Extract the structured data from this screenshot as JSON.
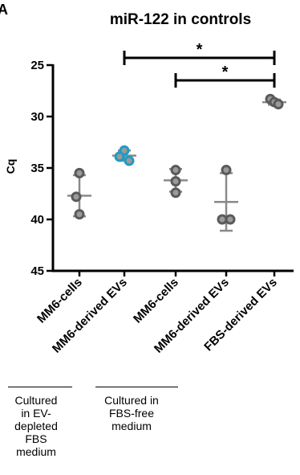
{
  "panel_letter": "A",
  "colors": {
    "point": "#5a5a5a",
    "highlight": "#1e9cc4",
    "axis": "#000000",
    "errorbar": "#8a8a8a"
  },
  "chart_data": {
    "type": "scatter",
    "title": "miR-122 in controls",
    "xlabel": "",
    "ylabel": "Cq",
    "ylim": [
      45,
      25
    ],
    "y_inverted": true,
    "yticks": [
      25,
      30,
      35,
      40,
      45
    ],
    "grid": false,
    "categories": [
      "MM6-cells",
      "MM6-derived EVs",
      "MM6-cells",
      "MM6-derived EVs",
      "FBS-derived EVs"
    ],
    "points": [
      [
        35.5,
        37.8,
        39.5
      ],
      [
        33.3,
        33.9,
        34.3
      ],
      [
        35.2,
        36.3,
        37.4
      ],
      [
        35.2,
        40.0,
        40.0
      ],
      [
        28.3,
        28.6,
        28.8
      ]
    ],
    "mean": [
      37.7,
      33.8,
      36.2,
      38.3,
      28.6
    ],
    "sd": [
      2.0,
      0.5,
      1.1,
      2.8,
      0.25
    ],
    "highlighted_category_index": 1,
    "significance": [
      {
        "from": 1,
        "to": 4,
        "label": "*"
      },
      {
        "from": 2,
        "to": 4,
        "label": "*"
      }
    ]
  },
  "groups": [
    {
      "label_lines": [
        "Cultured",
        "in EV-",
        "depleted",
        "FBS",
        "medium"
      ]
    },
    {
      "label_lines": [
        "Cultured in",
        "FBS-free",
        "medium"
      ]
    }
  ]
}
